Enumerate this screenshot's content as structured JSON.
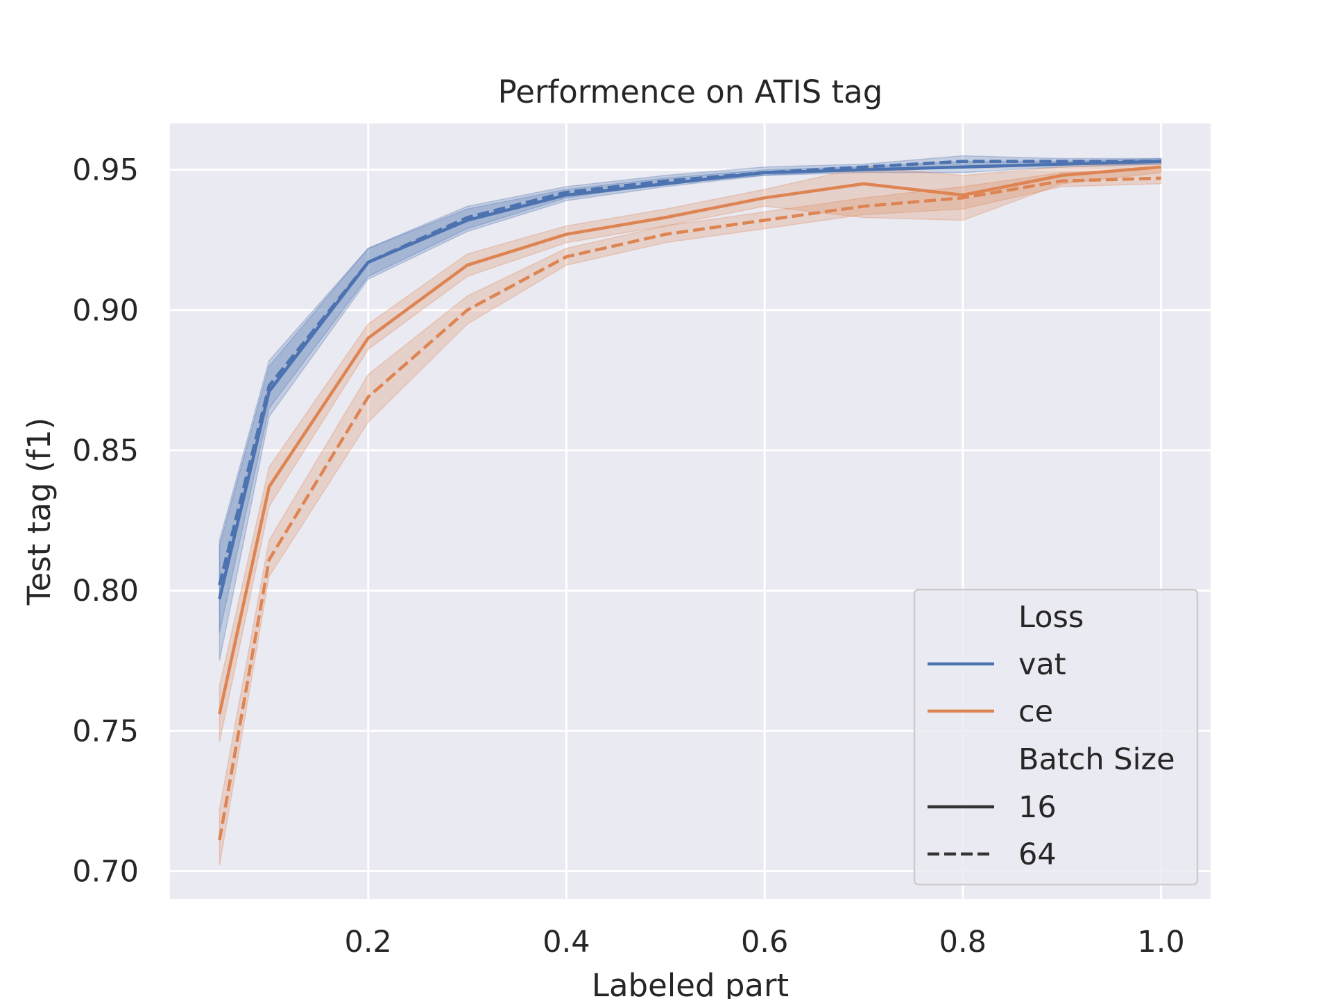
{
  "chart_data": {
    "type": "line",
    "title": "Performence on ATIS tag",
    "xlabel": "Labeled part",
    "ylabel": "Test tag (f1)",
    "xlim": [
      0.0,
      1.05
    ],
    "ylim": [
      0.69,
      0.9665
    ],
    "x_ticks": [
      "0.2",
      "0.4",
      "0.6",
      "0.8",
      "1.0"
    ],
    "x_tick_values": [
      0.2,
      0.4,
      0.6,
      0.8,
      1.0
    ],
    "y_ticks": [
      "0.70",
      "0.75",
      "0.80",
      "0.85",
      "0.90",
      "0.95"
    ],
    "y_tick_values": [
      0.7,
      0.75,
      0.8,
      0.85,
      0.9,
      0.95
    ],
    "grid": true,
    "legend_position": "lower-right",
    "x": [
      0.05,
      0.1,
      0.2,
      0.3,
      0.4,
      0.5,
      0.6,
      0.7,
      0.8,
      0.9,
      1.0
    ],
    "series": [
      {
        "loss": "vat",
        "batch": "16",
        "color": "#4c72b0",
        "dash": "solid",
        "values": [
          0.797,
          0.871,
          0.917,
          0.932,
          0.941,
          0.945,
          0.949,
          0.95,
          0.951,
          0.952,
          0.953
        ],
        "ci_low": [
          0.775,
          0.862,
          0.911,
          0.928,
          0.939,
          0.944,
          0.948,
          0.949,
          0.949,
          0.951,
          0.952
        ],
        "ci_high": [
          0.816,
          0.88,
          0.922,
          0.936,
          0.943,
          0.947,
          0.95,
          0.951,
          0.953,
          0.953,
          0.954
        ]
      },
      {
        "loss": "vat",
        "batch": "64",
        "color": "#4c72b0",
        "dash": "dashed",
        "values": [
          0.802,
          0.873,
          0.917,
          0.933,
          0.942,
          0.946,
          0.949,
          0.951,
          0.953,
          0.953,
          0.953
        ],
        "ci_low": [
          0.785,
          0.865,
          0.912,
          0.929,
          0.94,
          0.945,
          0.948,
          0.95,
          0.951,
          0.952,
          0.952
        ],
        "ci_high": [
          0.818,
          0.882,
          0.922,
          0.937,
          0.944,
          0.948,
          0.951,
          0.952,
          0.955,
          0.954,
          0.954
        ]
      },
      {
        "loss": "ce",
        "batch": "16",
        "color": "#dd8452",
        "dash": "solid",
        "values": [
          0.756,
          0.837,
          0.89,
          0.916,
          0.927,
          0.933,
          0.94,
          0.945,
          0.941,
          0.948,
          0.951
        ],
        "ci_low": [
          0.746,
          0.83,
          0.886,
          0.912,
          0.924,
          0.93,
          0.937,
          0.933,
          0.932,
          0.945,
          0.949
        ],
        "ci_high": [
          0.766,
          0.844,
          0.895,
          0.92,
          0.93,
          0.936,
          0.943,
          0.951,
          0.948,
          0.951,
          0.953
        ]
      },
      {
        "loss": "ce",
        "batch": "64",
        "color": "#dd8452",
        "dash": "dashed",
        "values": [
          0.711,
          0.811,
          0.869,
          0.9,
          0.919,
          0.927,
          0.932,
          0.937,
          0.94,
          0.946,
          0.947
        ],
        "ci_low": [
          0.702,
          0.805,
          0.86,
          0.895,
          0.916,
          0.924,
          0.929,
          0.934,
          0.936,
          0.944,
          0.945
        ],
        "ci_high": [
          0.722,
          0.818,
          0.877,
          0.905,
          0.922,
          0.93,
          0.935,
          0.94,
          0.944,
          0.949,
          0.95
        ]
      }
    ]
  },
  "legend": {
    "loss_header": "Loss",
    "loss_items": [
      {
        "label": "vat",
        "color": "#4c72b0"
      },
      {
        "label": "ce",
        "color": "#dd8452"
      }
    ],
    "batch_header": "Batch Size",
    "batch_items": [
      {
        "label": "16",
        "dash": "solid"
      },
      {
        "label": "64",
        "dash": "dashed"
      }
    ]
  }
}
